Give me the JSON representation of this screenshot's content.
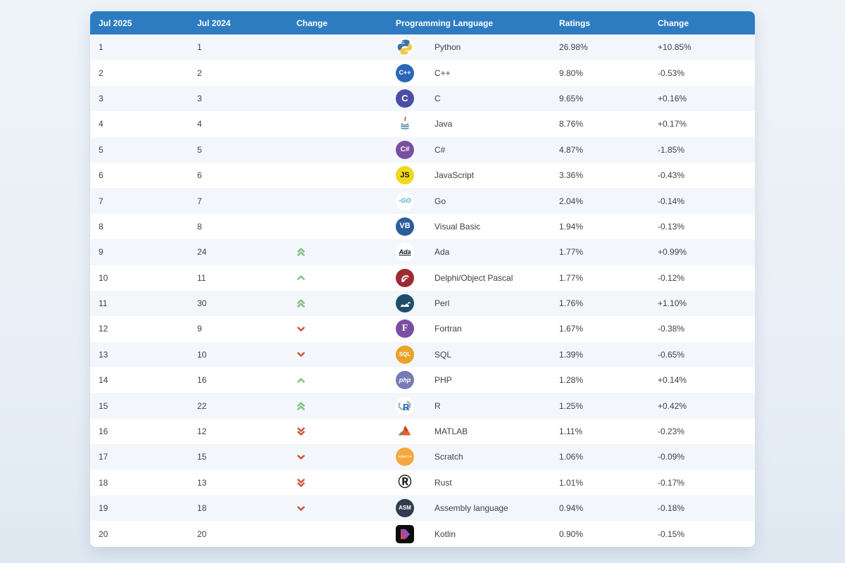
{
  "colors": {
    "header_bg": "#2d7cc2",
    "stripe_bg": "#f3f7fb",
    "up_arrow": "#8abf8a",
    "down_arrow": "#cd5c45"
  },
  "header": {
    "rank_new": "Jul 2025",
    "rank_old": "Jul 2024",
    "position_change": "Change",
    "language": "Programming Language",
    "ratings": "Ratings",
    "ratings_change": "Change"
  },
  "table": {
    "rows": [
      {
        "rank2025": "1",
        "rank2024": "1",
        "move": null,
        "language": "Python",
        "rating": "26.98%",
        "change": "+10.85%",
        "icon": {
          "type": "python"
        }
      },
      {
        "rank2025": "2",
        "rank2024": "2",
        "move": null,
        "language": "C++",
        "rating": "9.80%",
        "change": "-0.53%",
        "icon": {
          "type": "badge",
          "bg": "#2b66b8",
          "fg": "#ffffff",
          "label": "C++",
          "size": 9
        }
      },
      {
        "rank2025": "3",
        "rank2024": "3",
        "move": null,
        "language": "C",
        "rating": "9.65%",
        "change": "+0.16%",
        "icon": {
          "type": "badge",
          "bg": "#4a4fa3",
          "fg": "#ffffff",
          "label": "C",
          "size": 13
        }
      },
      {
        "rank2025": "4",
        "rank2024": "4",
        "move": null,
        "language": "Java",
        "rating": "8.76%",
        "change": "+0.17%",
        "icon": {
          "type": "java"
        }
      },
      {
        "rank2025": "5",
        "rank2024": "5",
        "move": null,
        "language": "C#",
        "rating": "4.87%",
        "change": "-1.85%",
        "icon": {
          "type": "badge",
          "bg": "#7a4fa3",
          "fg": "#ffffff",
          "label": "C#",
          "size": 10
        }
      },
      {
        "rank2025": "6",
        "rank2024": "6",
        "move": null,
        "language": "JavaScript",
        "rating": "3.36%",
        "change": "-0.43%",
        "icon": {
          "type": "badge",
          "bg": "#f0d91c",
          "fg": "#1a1a1a",
          "label": "JS",
          "size": 11
        }
      },
      {
        "rank2025": "7",
        "rank2024": "7",
        "move": null,
        "language": "Go",
        "rating": "2.04%",
        "change": "-0.14%",
        "icon": {
          "type": "badge",
          "bg": "#ffffff",
          "fg": "#35b6c9",
          "label": "-GO",
          "size": 9,
          "italic": true
        }
      },
      {
        "rank2025": "8",
        "rank2024": "8",
        "move": null,
        "language": "Visual Basic",
        "rating": "1.94%",
        "change": "-0.13%",
        "icon": {
          "type": "badge",
          "bg": "#2b5d9b",
          "fg": "#ffffff",
          "label": "VB",
          "size": 11
        }
      },
      {
        "rank2025": "9",
        "rank2024": "24",
        "move": "up2",
        "language": "Ada",
        "rating": "1.77%",
        "change": "+0.99%",
        "icon": {
          "type": "badge",
          "bg": "#ffffff",
          "fg": "#111111",
          "label": "Ada",
          "size": 9,
          "italic": true,
          "underline": true
        }
      },
      {
        "rank2025": "10",
        "rank2024": "11",
        "move": "up",
        "language": "Delphi/Object Pascal",
        "rating": "1.77%",
        "change": "-0.12%",
        "icon": {
          "type": "delphi"
        }
      },
      {
        "rank2025": "11",
        "rank2024": "30",
        "move": "up2",
        "language": "Perl",
        "rating": "1.76%",
        "change": "+1.10%",
        "icon": {
          "type": "perl"
        }
      },
      {
        "rank2025": "12",
        "rank2024": "9",
        "move": "down",
        "language": "Fortran",
        "rating": "1.67%",
        "change": "-0.38%",
        "icon": {
          "type": "badge",
          "bg": "#7a4fa3",
          "fg": "#ffffff",
          "label": "F",
          "size": 14,
          "serif": true
        }
      },
      {
        "rank2025": "13",
        "rank2024": "10",
        "move": "down",
        "language": "SQL",
        "rating": "1.39%",
        "change": "-0.65%",
        "icon": {
          "type": "badge",
          "bg": "#ebа229",
          "fg": "#ffffff",
          "label": "SQL",
          "size": 8,
          "bgfix": "#eba229"
        }
      },
      {
        "rank2025": "14",
        "rank2024": "16",
        "move": "up",
        "language": "PHP",
        "rating": "1.28%",
        "change": "+0.14%",
        "icon": {
          "type": "badge",
          "bg": "#767bb3",
          "fg": "#ffffff",
          "label": "php",
          "size": 9,
          "italic": true
        }
      },
      {
        "rank2025": "15",
        "rank2024": "22",
        "move": "up2",
        "language": "R",
        "rating": "1.25%",
        "change": "+0.42%",
        "icon": {
          "type": "rlang"
        }
      },
      {
        "rank2025": "16",
        "rank2024": "12",
        "move": "down2",
        "language": "MATLAB",
        "rating": "1.11%",
        "change": "-0.23%",
        "icon": {
          "type": "matlab"
        }
      },
      {
        "rank2025": "17",
        "rank2024": "15",
        "move": "down",
        "language": "Scratch",
        "rating": "1.06%",
        "change": "-0.09%",
        "icon": {
          "type": "badge",
          "bg": "#f5a83c",
          "fg": "#ffffff",
          "label": "SCRATCH",
          "size": 4
        }
      },
      {
        "rank2025": "18",
        "rank2024": "13",
        "move": "down2",
        "language": "Rust",
        "rating": "1.01%",
        "change": "-0.17%",
        "icon": {
          "type": "badge",
          "bg": "#ffffff",
          "fg": "#111111",
          "label": "Ⓡ",
          "size": 19
        }
      },
      {
        "rank2025": "19",
        "rank2024": "18",
        "move": "down",
        "language": "Assembly language",
        "rating": "0.94%",
        "change": "-0.18%",
        "icon": {
          "type": "badge",
          "bg": "#323c50",
          "fg": "#ffffff",
          "label": "ASM",
          "size": 8
        }
      },
      {
        "rank2025": "20",
        "rank2024": "20",
        "move": null,
        "language": "Kotlin",
        "rating": "0.90%",
        "change": "-0.15%",
        "icon": {
          "type": "kotlin"
        }
      }
    ]
  }
}
